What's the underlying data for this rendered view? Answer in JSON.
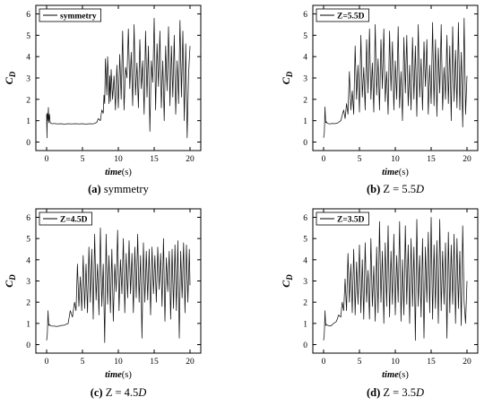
{
  "chart_data": [
    {
      "type": "line",
      "panel": "a",
      "legend": "symmetry",
      "legend_position": "top-left",
      "xlabel_italic": "time",
      "xlabel_unit": "(s)",
      "ylabel_main": "C",
      "ylabel_sub": "D",
      "xlim": [
        -1.5,
        21.5
      ],
      "ylim": [
        -0.4,
        6.4
      ],
      "xticks": [
        0,
        5,
        10,
        15,
        20
      ],
      "yticks": [
        0,
        1,
        2,
        3,
        4,
        5,
        6
      ],
      "caption": {
        "letter": "(a)",
        "rest": " symmetry",
        "italic": ""
      },
      "x": [
        0.0,
        0.05,
        0.1,
        0.15,
        0.2,
        0.25,
        0.3,
        0.4,
        0.5,
        0.6,
        0.8,
        1.0,
        1.5,
        2.0,
        2.5,
        3.0,
        3.5,
        4.0,
        4.5,
        5.0,
        5.5,
        6.0,
        6.5,
        7.0,
        7.2,
        7.5,
        7.7,
        7.9,
        8.0,
        8.1,
        8.2,
        8.3,
        8.4,
        8.5,
        8.6,
        8.7,
        8.8,
        8.9,
        9.0,
        9.2,
        9.4,
        9.6,
        9.8,
        10.0,
        10.2,
        10.4,
        10.6,
        10.8,
        11.0,
        11.2,
        11.4,
        11.6,
        11.8,
        12.0,
        12.2,
        12.4,
        12.6,
        12.8,
        13.0,
        13.2,
        13.4,
        13.6,
        13.8,
        14.0,
        14.2,
        14.4,
        14.6,
        14.8,
        15.0,
        15.2,
        15.4,
        15.6,
        15.8,
        16.0,
        16.2,
        16.4,
        16.6,
        16.8,
        17.0,
        17.2,
        17.4,
        17.6,
        17.8,
        18.0,
        18.2,
        18.4,
        18.6,
        18.8,
        19.0,
        19.2,
        19.4,
        19.6,
        19.8,
        20.0
      ],
      "y": [
        1.3,
        0.2,
        1.35,
        1.0,
        1.2,
        1.62,
        0.9,
        1.3,
        0.9,
        0.88,
        0.85,
        0.87,
        0.85,
        0.86,
        0.84,
        0.86,
        0.85,
        0.86,
        0.85,
        0.86,
        0.84,
        0.86,
        0.85,
        0.92,
        1.1,
        1.0,
        1.5,
        1.35,
        2.2,
        1.8,
        3.9,
        3.0,
        2.2,
        4.0,
        3.2,
        1.8,
        3.1,
        1.9,
        3.4,
        2.0,
        3.1,
        1.5,
        3.6,
        1.6,
        4.1,
        2.0,
        5.2,
        1.5,
        3.5,
        3.0,
        5.3,
        2.5,
        4.2,
        1.7,
        5.5,
        2.2,
        3.7,
        1.6,
        4.8,
        2.5,
        3.8,
        1.3,
        5.2,
        2.1,
        4.5,
        0.5,
        3.8,
        2.8,
        5.8,
        1.5,
        4.6,
        2.6,
        5.2,
        1.6,
        3.8,
        1.0,
        4.5,
        2.4,
        5.4,
        1.7,
        4.5,
        2.1,
        5.0,
        1.3,
        3.8,
        1.8,
        5.7,
        2.1,
        5.2,
        1.0,
        4.6,
        0.2,
        3.2,
        4.5
      ]
    },
    {
      "type": "line",
      "panel": "b",
      "legend": "Z=5.5D",
      "legend_position": "top-left",
      "xlabel_italic": "time",
      "xlabel_unit": "(s)",
      "ylabel_main": "C",
      "ylabel_sub": "D",
      "xlim": [
        -1.5,
        21.5
      ],
      "ylim": [
        -0.4,
        6.4
      ],
      "xticks": [
        0,
        5,
        10,
        15,
        20
      ],
      "yticks": [
        0,
        1,
        2,
        3,
        4,
        5,
        6
      ],
      "caption": {
        "letter": "(b)",
        "rest": " Z = 5.5",
        "italic": "D"
      },
      "x": [
        0.0,
        0.1,
        0.2,
        0.25,
        0.3,
        0.4,
        0.5,
        0.8,
        1.2,
        1.6,
        2.0,
        2.4,
        2.8,
        3.0,
        3.2,
        3.4,
        3.6,
        3.8,
        4.0,
        4.2,
        4.4,
        4.6,
        4.8,
        5.0,
        5.2,
        5.4,
        5.6,
        5.8,
        6.0,
        6.2,
        6.4,
        6.6,
        6.8,
        7.0,
        7.2,
        7.4,
        7.6,
        7.8,
        8.0,
        8.2,
        8.4,
        8.6,
        8.8,
        9.0,
        9.2,
        9.4,
        9.6,
        9.8,
        10.0,
        10.2,
        10.4,
        10.6,
        10.8,
        11.0,
        11.2,
        11.4,
        11.6,
        11.8,
        12.0,
        12.2,
        12.4,
        12.6,
        12.8,
        13.0,
        13.2,
        13.4,
        13.6,
        13.8,
        14.0,
        14.2,
        14.4,
        14.6,
        14.8,
        15.0,
        15.2,
        15.4,
        15.6,
        15.8,
        16.0,
        16.2,
        16.4,
        16.6,
        16.8,
        17.0,
        17.2,
        17.4,
        17.6,
        17.8,
        18.0,
        18.2,
        18.4,
        18.6,
        18.8,
        19.0,
        19.2,
        19.4,
        19.6,
        19.8,
        20.0
      ],
      "y": [
        0.2,
        0.4,
        1.65,
        1.2,
        0.9,
        0.95,
        0.88,
        0.85,
        0.87,
        0.86,
        0.9,
        1.0,
        1.5,
        1.1,
        1.8,
        1.3,
        3.3,
        1.5,
        2.4,
        1.3,
        4.5,
        2.0,
        3.6,
        1.4,
        5.0,
        2.1,
        3.5,
        1.5,
        4.8,
        2.3,
        5.3,
        2.0,
        3.7,
        1.4,
        5.5,
        2.2,
        3.9,
        1.5,
        4.8,
        2.5,
        5.3,
        1.9,
        3.3,
        1.3,
        5.2,
        2.4,
        4.7,
        1.5,
        3.8,
        2.0,
        5.4,
        1.6,
        3.3,
        1.0,
        4.9,
        2.3,
        5.0,
        1.7,
        3.6,
        1.5,
        4.9,
        2.0,
        4.5,
        1.2,
        5.5,
        2.1,
        3.9,
        1.5,
        4.7,
        2.6,
        4.8,
        1.3,
        3.6,
        1.8,
        5.6,
        1.7,
        4.8,
        1.2,
        4.4,
        2.3,
        5.5,
        1.5,
        3.5,
        2.0,
        5.0,
        1.8,
        4.5,
        1.0,
        5.4,
        1.9,
        4.3,
        1.6,
        5.6,
        1.5,
        4.2,
        0.7,
        5.8,
        1.3,
        3.1
      ]
    },
    {
      "type": "line",
      "panel": "c",
      "legend": "Z=4.5D",
      "legend_position": "top-left",
      "xlabel_italic": "time",
      "xlabel_unit": "(s)",
      "ylabel_main": "C",
      "ylabel_sub": "D",
      "xlim": [
        -1.5,
        21.5
      ],
      "ylim": [
        -0.4,
        6.4
      ],
      "xticks": [
        0,
        5,
        10,
        15,
        20
      ],
      "yticks": [
        0,
        1,
        2,
        3,
        4,
        5,
        6
      ],
      "caption": {
        "letter": "(c)",
        "rest": " Z = 4.5",
        "italic": "D"
      },
      "x": [
        0.0,
        0.1,
        0.2,
        0.25,
        0.3,
        0.4,
        0.6,
        1.0,
        1.5,
        2.0,
        2.5,
        3.0,
        3.3,
        3.6,
        3.9,
        4.1,
        4.3,
        4.5,
        4.7,
        4.9,
        5.1,
        5.3,
        5.5,
        5.7,
        5.9,
        6.1,
        6.3,
        6.5,
        6.7,
        6.9,
        7.1,
        7.3,
        7.5,
        7.7,
        7.9,
        8.1,
        8.3,
        8.5,
        8.7,
        8.9,
        9.1,
        9.3,
        9.5,
        9.7,
        9.9,
        10.1,
        10.3,
        10.5,
        10.7,
        10.9,
        11.1,
        11.3,
        11.5,
        11.7,
        11.9,
        12.1,
        12.3,
        12.5,
        12.7,
        12.9,
        13.1,
        13.3,
        13.5,
        13.7,
        13.9,
        14.1,
        14.3,
        14.5,
        14.7,
        14.9,
        15.1,
        15.3,
        15.5,
        15.7,
        15.9,
        16.1,
        16.3,
        16.5,
        16.7,
        16.9,
        17.1,
        17.3,
        17.5,
        17.7,
        17.9,
        18.1,
        18.3,
        18.5,
        18.7,
        18.9,
        19.1,
        19.3,
        19.5,
        19.7,
        19.9,
        20.0
      ],
      "y": [
        0.2,
        0.5,
        1.6,
        1.2,
        0.9,
        0.95,
        0.88,
        0.87,
        0.86,
        0.9,
        0.92,
        1.0,
        1.6,
        1.3,
        2.0,
        1.6,
        3.8,
        1.8,
        3.2,
        1.6,
        4.2,
        1.7,
        3.8,
        1.5,
        4.6,
        2.0,
        4.5,
        1.2,
        5.2,
        2.1,
        3.8,
        1.4,
        5.5,
        1.8,
        3.8,
        0.1,
        5.2,
        1.9,
        4.2,
        1.5,
        4.5,
        1.1,
        3.8,
        2.5,
        5.4,
        1.6,
        4.0,
        2.4,
        5.0,
        1.5,
        4.3,
        2.2,
        4.9,
        2.4,
        4.3,
        1.5,
        4.6,
        2.2,
        5.2,
        2.0,
        4.2,
        0.3,
        4.8,
        2.0,
        4.4,
        2.1,
        4.5,
        1.4,
        4.6,
        2.4,
        4.2,
        2.0,
        4.6,
        2.6,
        4.3,
        1.8,
        5.0,
        1.1,
        4.1,
        2.5,
        4.4,
        1.2,
        4.5,
        1.7,
        4.7,
        1.6,
        4.9,
        0.3,
        4.4,
        2.2,
        4.8,
        1.5,
        4.7,
        2.0,
        4.5,
        2.8
      ]
    },
    {
      "type": "line",
      "panel": "d",
      "legend": "Z=3.5D",
      "legend_position": "top-left",
      "xlabel_italic": "time",
      "xlabel_unit": "(s)",
      "ylabel_main": "C",
      "ylabel_sub": "D",
      "xlim": [
        -1.5,
        21.5
      ],
      "ylim": [
        -0.4,
        6.4
      ],
      "xticks": [
        0,
        5,
        10,
        15,
        20
      ],
      "yticks": [
        0,
        1,
        2,
        3,
        4,
        5,
        6
      ],
      "caption": {
        "letter": "(d)",
        "rest": " Z = 3.5",
        "italic": "D"
      },
      "x": [
        0.0,
        0.1,
        0.2,
        0.25,
        0.3,
        0.4,
        0.6,
        1.0,
        1.4,
        1.8,
        2.1,
        2.4,
        2.6,
        2.8,
        3.0,
        3.2,
        3.4,
        3.6,
        3.8,
        4.0,
        4.2,
        4.4,
        4.6,
        4.8,
        5.0,
        5.2,
        5.4,
        5.6,
        5.8,
        6.0,
        6.2,
        6.4,
        6.6,
        6.8,
        7.0,
        7.2,
        7.4,
        7.6,
        7.8,
        8.0,
        8.2,
        8.4,
        8.6,
        8.8,
        9.0,
        9.2,
        9.4,
        9.6,
        9.8,
        10.0,
        10.2,
        10.4,
        10.6,
        10.8,
        11.0,
        11.2,
        11.4,
        11.6,
        11.8,
        12.0,
        12.2,
        12.4,
        12.6,
        12.8,
        13.0,
        13.2,
        13.4,
        13.6,
        13.8,
        14.0,
        14.2,
        14.4,
        14.6,
        14.8,
        15.0,
        15.2,
        15.4,
        15.6,
        15.8,
        16.0,
        16.2,
        16.4,
        16.6,
        16.8,
        17.0,
        17.2,
        17.4,
        17.6,
        17.8,
        18.0,
        18.2,
        18.4,
        18.6,
        18.8,
        19.0,
        19.2,
        19.4,
        19.6,
        19.8,
        20.0
      ],
      "y": [
        0.2,
        0.5,
        1.6,
        1.2,
        0.9,
        0.95,
        0.9,
        0.88,
        1.0,
        1.1,
        1.4,
        1.3,
        2.0,
        1.6,
        3.1,
        1.6,
        4.3,
        2.0,
        3.8,
        1.5,
        4.5,
        1.4,
        3.9,
        1.9,
        4.7,
        1.5,
        4.0,
        1.2,
        4.8,
        2.0,
        3.5,
        1.2,
        5.0,
        1.8,
        3.7,
        1.1,
        4.6,
        1.5,
        5.8,
        2.0,
        4.4,
        1.0,
        4.8,
        1.8,
        5.6,
        1.3,
        4.4,
        1.9,
        5.2,
        1.4,
        4.2,
        2.0,
        5.8,
        1.1,
        4.0,
        1.4,
        5.6,
        1.9,
        4.7,
        1.0,
        5.0,
        1.8,
        4.6,
        0.2,
        5.9,
        1.8,
        4.2,
        1.3,
        5.0,
        0.3,
        4.6,
        2.0,
        5.3,
        1.5,
        6.0,
        1.2,
        4.7,
        1.7,
        4.9,
        1.0,
        5.9,
        1.6,
        4.4,
        1.9,
        4.8,
        0.3,
        5.3,
        1.5,
        4.7,
        1.9,
        5.2,
        1.0,
        5.0,
        1.7,
        4.4,
        0.9,
        5.6,
        2.0,
        1.0,
        3.0
      ]
    }
  ]
}
